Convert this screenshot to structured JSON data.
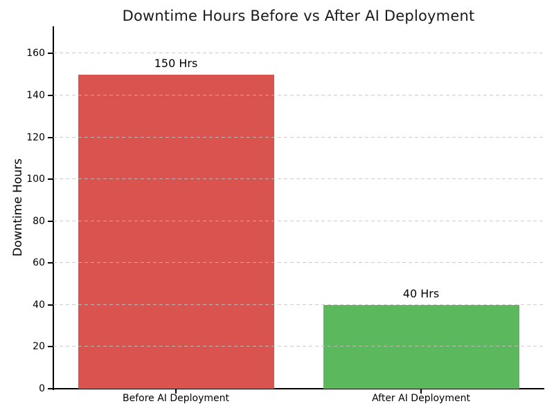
{
  "chart_data": {
    "type": "bar",
    "title": "Downtime Hours Before vs After AI Deployment",
    "categories": [
      "Before AI Deployment",
      "After AI Deployment"
    ],
    "values": [
      150,
      40
    ],
    "bar_labels": [
      "150 Hrs",
      "40 Hrs"
    ],
    "bar_colors": [
      "#d9534f",
      "#5cb85c"
    ],
    "xlabel": "",
    "ylabel": "Downtime Hours",
    "yticks": [
      0,
      20,
      40,
      60,
      80,
      100,
      120,
      140,
      160
    ],
    "ylim": [
      0,
      173
    ],
    "grid": "horizontal-dashed",
    "grid_color": "#c3c3c3",
    "legend": "none",
    "spine_color": "#000000",
    "title_color": "#1a1a1a",
    "background_color": "#ffffff"
  }
}
